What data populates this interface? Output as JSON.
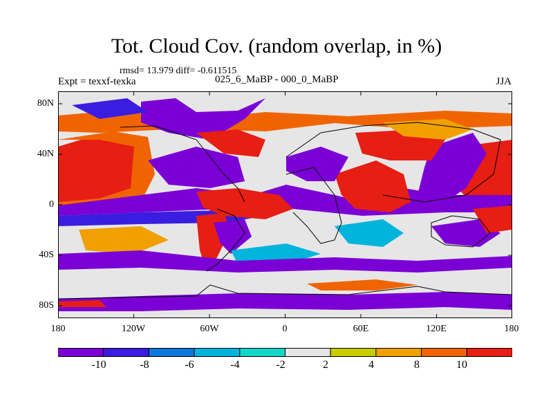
{
  "title": "Tot. Cloud Cov. (random overlap, in %)",
  "stats": "rmsd= 13.979 diff= -0.611515",
  "expt_label": "Expt = texxf-texka",
  "comparison_label": "025_6_MaBP - 000_0_MaBP",
  "season_label": "JJA",
  "map_data": {
    "type": "filled-contour-map",
    "x_ticks": [
      "180",
      "120W",
      "60W",
      "0",
      "60E",
      "120E",
      "180"
    ],
    "y_ticks": [
      "80N",
      "40N",
      "0",
      "40S",
      "80S"
    ],
    "lon_range": [
      -180,
      180
    ],
    "lat_range": [
      -90,
      90
    ]
  },
  "colorbar": {
    "labels": [
      "-10",
      "-8",
      "-6",
      "-4",
      "-2",
      "2",
      "4",
      "8",
      "10"
    ],
    "colors": [
      "#7b00d6",
      "#3a1de0",
      "#0a77dc",
      "#00b4dc",
      "#14d6c8",
      "#e6e6e6",
      "#c8cd00",
      "#f0a000",
      "#f06400",
      "#e61e14"
    ]
  }
}
